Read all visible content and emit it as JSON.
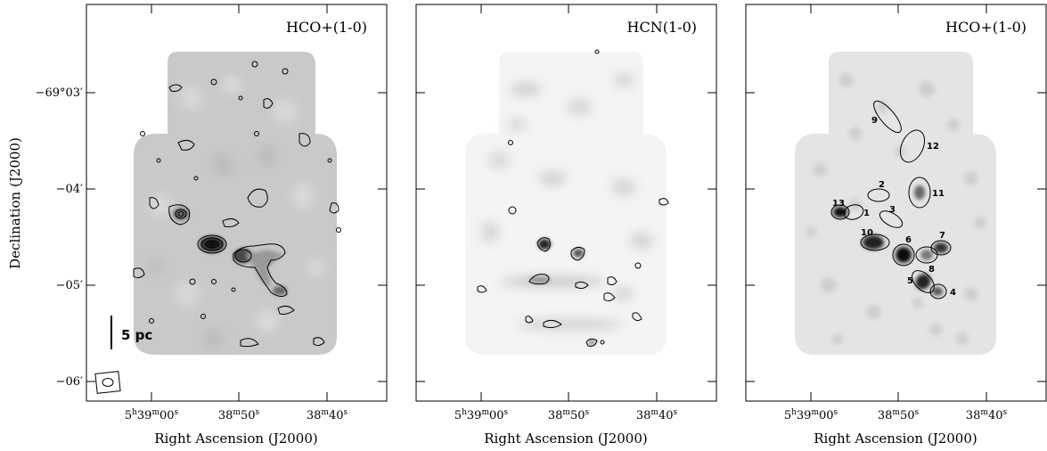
{
  "chart_data": [
    {
      "type": "heatmap",
      "title": "HCO+(1-0)",
      "xlabel": "Right Ascension (J2000)",
      "ylabel": "Declination (J2000)",
      "x_ticks": [
        {
          "h": "5",
          "m": "39",
          "s": "00",
          "show_h": true
        },
        {
          "m": "38",
          "s": "50",
          "show_h": false
        },
        {
          "m": "38",
          "s": "40",
          "show_h": false
        }
      ],
      "y_ticks": [
        "−69°03′",
        "−04′",
        "−05′",
        "−06′"
      ],
      "scale_bar_label": "5 pc"
    },
    {
      "type": "heatmap",
      "title": "HCN(1-0)",
      "xlabel": "Right Ascension (J2000)",
      "x_ticks": [
        {
          "h": "5",
          "m": "39",
          "s": "00",
          "show_h": true
        },
        {
          "m": "38",
          "s": "50",
          "show_h": false
        },
        {
          "m": "38",
          "s": "40",
          "show_h": false
        }
      ]
    },
    {
      "type": "heatmap",
      "title": "HCO+(1-0)",
      "xlabel": "Right Ascension (J2000)",
      "x_ticks": [
        {
          "h": "5",
          "m": "39",
          "s": "00",
          "show_h": true
        },
        {
          "m": "38",
          "s": "50",
          "show_h": false
        },
        {
          "m": "38",
          "s": "40",
          "show_h": false
        }
      ],
      "clump_labels": [
        "1",
        "2",
        "3",
        "4",
        "5",
        "6",
        "7",
        "8",
        "9",
        "10",
        "11",
        "12",
        "13"
      ]
    }
  ]
}
